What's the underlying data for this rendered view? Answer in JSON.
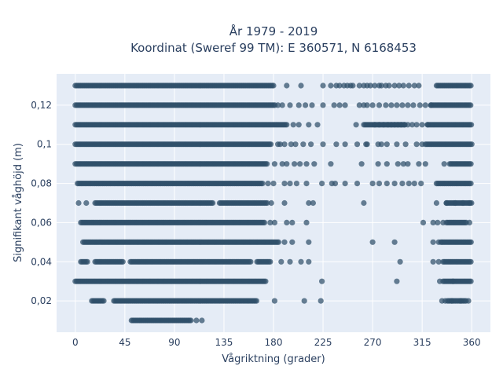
{
  "chart_data": {
    "type": "scatter",
    "title_line1": "År 1979 - 2019",
    "title_line2": "Koordinat (Sweref 99 TM): E 360571, N 6168453",
    "xlabel": "Vågriktning (grader)",
    "ylabel": "Signifikant våghöjd (m)",
    "xlim": [
      -17,
      377
    ],
    "ylim": [
      0.004,
      0.136
    ],
    "grid": true,
    "x_ticks": [
      0,
      45,
      90,
      135,
      180,
      225,
      270,
      315,
      360
    ],
    "x_tick_labels": [
      "0",
      "45",
      "90",
      "135",
      "180",
      "225",
      "270",
      "315",
      "360"
    ],
    "y_ticks": [
      0.02,
      0.04,
      0.06,
      0.08,
      0.1,
      0.12
    ],
    "y_tick_labels": [
      "0,02",
      "0,04",
      "0,06",
      "0,08",
      "0,1",
      "0,12"
    ],
    "colors": {
      "background": "#ffffff",
      "plot_background": "#e5ecf6",
      "grid": "#ffffff",
      "marker": "#2f4f6a",
      "text": "#2a3f5f"
    },
    "series": [
      {
        "marker_opacity": 0.72,
        "rows": [
          {
            "y": 0.13,
            "segments": [
              [
                0,
                180
              ]
            ],
            "points": [
              192,
              205,
              225,
              232,
              237,
              240,
              244,
              247,
              250,
              252,
              258,
              262,
              265,
              268,
              272,
              276,
              278,
              282,
              285,
              290,
              294,
              298,
              303,
              308,
              312
            ]
          },
          {
            "y": 0.13,
            "segments": [
              [
                328,
                360
              ]
            ],
            "points": []
          },
          {
            "y": 0.12,
            "segments": [
              [
                0,
                182
              ]
            ],
            "points": [
              188,
              203,
              215,
              225,
              235,
              245,
              262,
              265,
              270,
              276,
              282,
              287,
              292,
              297,
              302,
              307,
              313,
              318,
              323
            ]
          },
          {
            "y": 0.12,
            "segments": [
              [
                323,
                360
              ]
            ],
            "points": [
              184,
              195,
              209,
              240,
              258
            ]
          },
          {
            "y": 0.11,
            "segments": [
              [
                0,
                193
              ]
            ],
            "points": [
              198,
              203,
              212,
              220,
              255,
              272,
              276,
              280,
              284,
              287,
              290,
              293,
              296,
              299,
              302,
              306,
              310,
              315,
              320
            ]
          },
          {
            "y": 0.11,
            "segments": [
              [
                262,
                300
              ],
              [
                320,
                360
              ]
            ],
            "points": []
          },
          {
            "y": 0.1,
            "segments": [
              [
                0,
                178
              ]
            ],
            "points": [
              184,
              190,
              196,
              200,
              207,
              214,
              225,
              237,
              256,
              264,
              275,
              283,
              292,
              300,
              310,
              315
            ]
          },
          {
            "y": 0.1,
            "segments": [
              [
                318,
                360
              ]
            ],
            "points": [
              186,
              245,
              265,
              278
            ]
          },
          {
            "y": 0.09,
            "segments": [
              [
                0,
                175
              ]
            ],
            "points": [
              181,
              188,
              192,
              199,
              204,
              210,
              217,
              232,
              260,
              275,
              283,
              293,
              298,
              302,
              312,
              318
            ]
          },
          {
            "y": 0.09,
            "segments": [
              [
                340,
                360
              ]
            ],
            "points": [
              335
            ]
          },
          {
            "y": 0.08,
            "segments": [
              [
                2,
                170
              ]
            ],
            "points": [
              175,
              180,
              190,
              195,
              201,
              210,
              224,
              233,
              236,
              245,
              256,
              270,
              283,
              290,
              297,
              308,
              314
            ]
          },
          {
            "y": 0.08,
            "segments": [
              [
                328,
                360
              ]
            ],
            "points": [
              276,
              303
            ]
          },
          {
            "y": 0.07,
            "segments": [
              [
                18,
                125
              ],
              [
                131,
                175
              ]
            ],
            "points": [
              3,
              10,
              178,
              190,
              212,
              216,
              262,
              328,
              337,
              345,
              352,
              358
            ]
          },
          {
            "y": 0.07,
            "segments": [
              [
                337,
                360
              ]
            ],
            "points": []
          },
          {
            "y": 0.06,
            "segments": [
              [
                5,
                172
              ]
            ],
            "points": [
              177,
              181,
              192,
              197,
              210,
              316
            ]
          },
          {
            "y": 0.06,
            "segments": [
              [
                337,
                355
              ]
            ],
            "points": [
              325,
              329,
              334,
              358
            ]
          },
          {
            "y": 0.05,
            "segments": [
              [
                7,
                185
              ]
            ],
            "points": [
              190,
              197,
              212,
              270,
              290,
              330,
              332
            ]
          },
          {
            "y": 0.05,
            "segments": [
              [
                333,
                360
              ]
            ],
            "points": [
              325
            ]
          },
          {
            "y": 0.04,
            "segments": [
              [
                5,
                11
              ],
              [
                18,
                44
              ],
              [
                50,
                160
              ],
              [
                165,
                178
              ]
            ],
            "points": [
              187,
              195,
              205,
              212,
              295,
              325
            ]
          },
          {
            "y": 0.04,
            "segments": [
              [
                334,
                360
              ]
            ],
            "points": [
              330
            ]
          },
          {
            "y": 0.03,
            "segments": [
              [
                0,
                173
              ]
            ],
            "points": [
              224,
              292
            ]
          },
          {
            "y": 0.03,
            "segments": [
              [
                334,
                360
              ]
            ],
            "points": [
              331,
              343
            ]
          },
          {
            "y": 0.02,
            "segments": [
              [
                15,
                26
              ],
              [
                35,
                165
              ]
            ],
            "points": [
              181,
              208,
              223,
              333,
              336,
              342,
              350,
              357
            ]
          },
          {
            "y": 0.02,
            "segments": [
              [
                338,
                355
              ]
            ],
            "points": []
          },
          {
            "y": 0.01,
            "segments": [
              [
                51,
                105
              ]
            ],
            "points": [
              110,
              115
            ]
          }
        ]
      }
    ]
  }
}
